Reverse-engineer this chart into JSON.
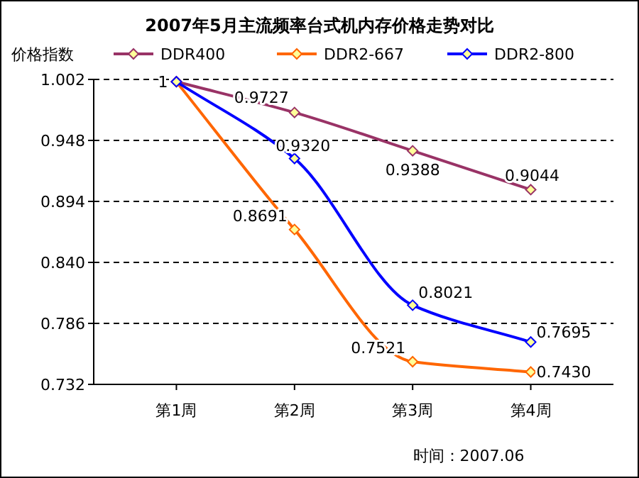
{
  "chart_data": {
    "type": "line",
    "title": "2007年5月主流频率台式机内存价格走势对比",
    "ylabel": "价格指数",
    "categories": [
      "第1周",
      "第2周",
      "第3周",
      "第4周"
    ],
    "series": [
      {
        "name": "DDR400",
        "color": "#993366",
        "values": [
          1,
          0.9727,
          0.9388,
          0.9044
        ],
        "value_labels": [
          "1",
          "0.9727",
          "0.9388",
          "0.9044"
        ]
      },
      {
        "name": "DDR2-667",
        "color": "#ff6600",
        "values": [
          1,
          0.8691,
          0.7521,
          0.743
        ],
        "value_labels": [
          null,
          "0.8691",
          "0.7521",
          "0.7430"
        ]
      },
      {
        "name": "DDR2-800",
        "color": "#0000ff",
        "values": [
          1,
          0.932,
          0.8021,
          0.7695
        ],
        "value_labels": [
          null,
          "0.9320",
          "0.8021",
          "0.7695"
        ]
      }
    ],
    "ylim": [
      0.732,
      1.002
    ],
    "yticks": [
      0.732,
      0.786,
      {
        "value": 0.84,
        "label": "0.840"
      },
      0.894,
      0.948,
      1.002
    ],
    "grid": "y",
    "legend": "top",
    "marker": "diamond",
    "line_style": "solid",
    "annotations": [
      "时间：2007.06"
    ]
  }
}
